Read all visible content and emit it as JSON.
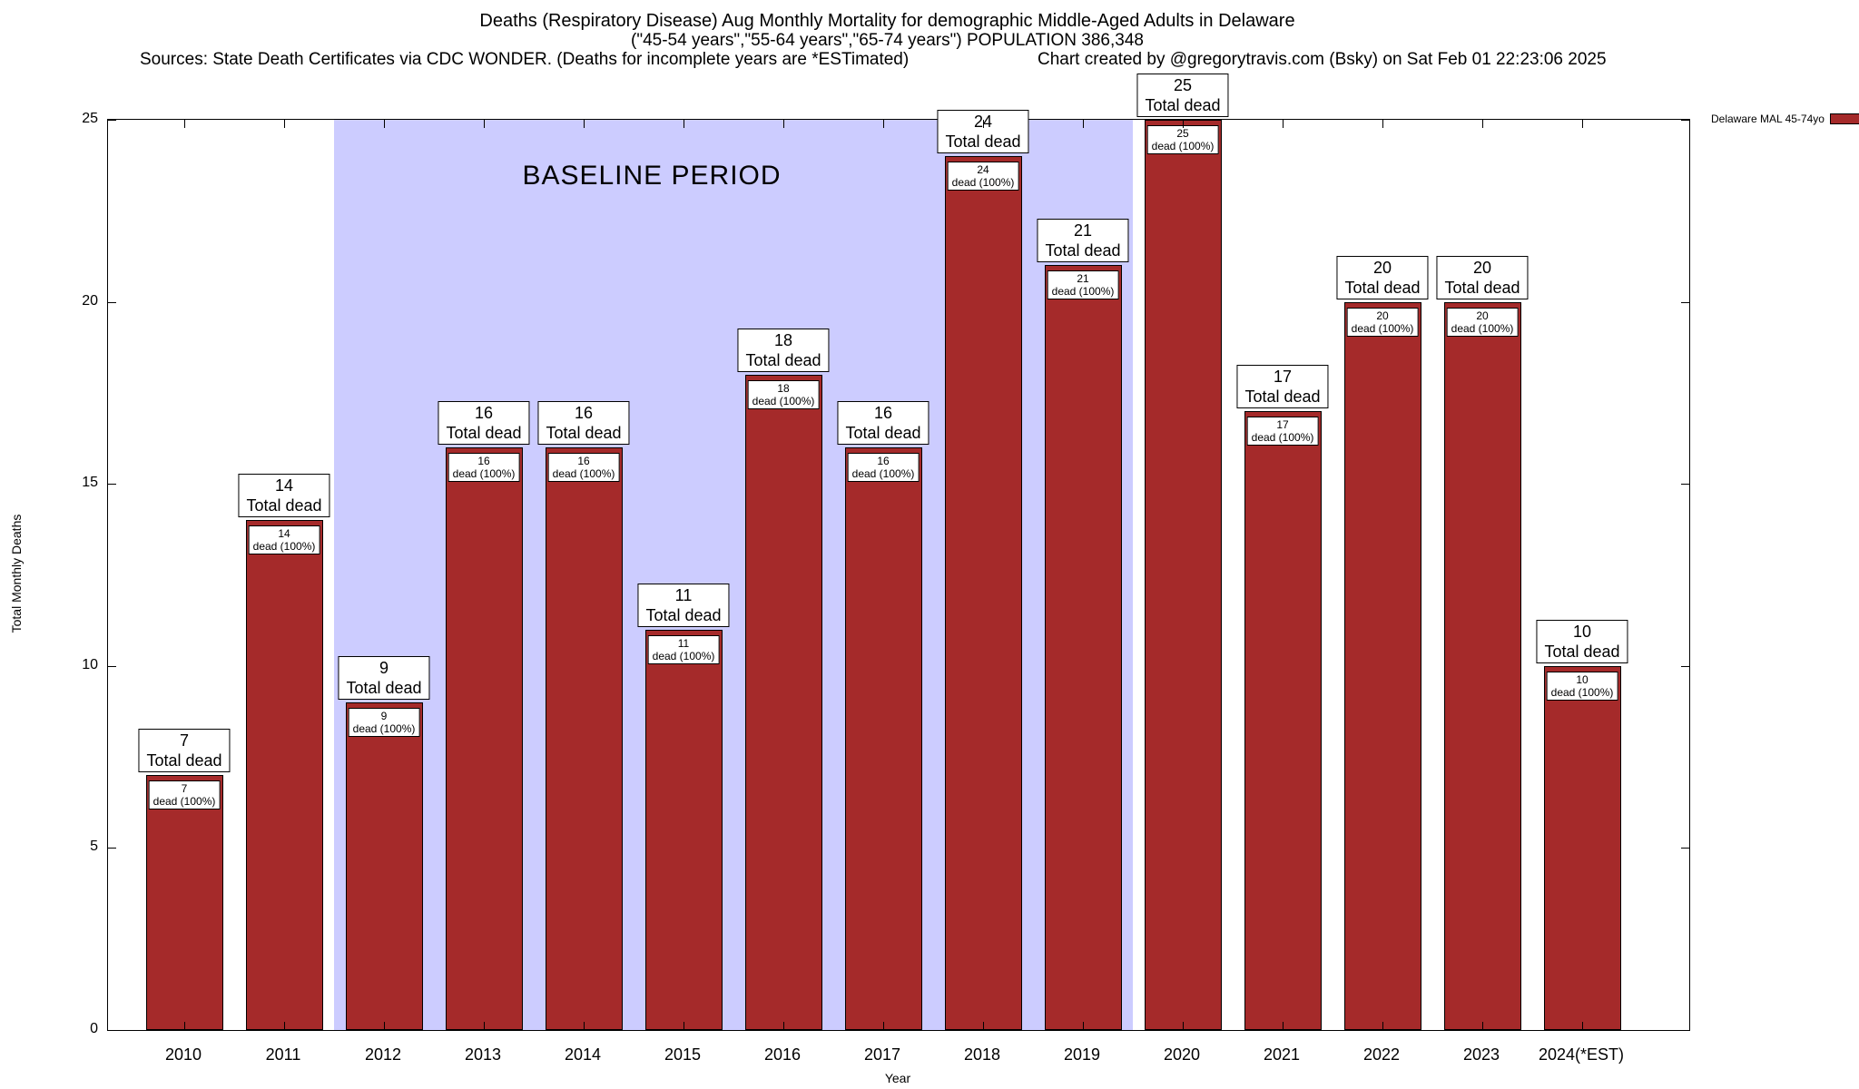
{
  "header": {
    "title_line1": "Deaths (Respiratory Disease) Aug Monthly Mortality for demographic Middle-Aged Adults in Delaware",
    "title_line2": "(\"45-54 years\",\"55-64 years\",\"65-74 years\") POPULATION 386,348",
    "sources": "Sources: State Death Certificates via CDC WONDER. (Deaths for incomplete years are *ESTimated)",
    "credit": "Chart created by @gregorytravis.com (Bsky) on Sat Feb 01 22:23:06 2025"
  },
  "legend": {
    "label": "Delaware MAL 45-74yo",
    "swatch_color": "#A52A2A"
  },
  "axes": {
    "ylabel": "Total Monthly Deaths",
    "xlabel": "Year"
  },
  "chart_data": {
    "type": "bar",
    "title": "Deaths (Respiratory Disease) Aug Monthly Mortality for demographic Middle-Aged Adults in Delaware",
    "subtitle": "(\"45-54 years\",\"55-64 years\",\"65-74 years\") POPULATION 386,348",
    "categories": [
      "2010",
      "2011",
      "2012",
      "2013",
      "2014",
      "2015",
      "2016",
      "2017",
      "2018",
      "2019",
      "2020",
      "2021",
      "2022",
      "2023",
      "2024(*EST)"
    ],
    "values": [
      7,
      14,
      9,
      16,
      16,
      11,
      18,
      16,
      24,
      21,
      25,
      17,
      20,
      20,
      10
    ],
    "series_name": "Delaware MAL 45-74yo",
    "bar_color": "#A52A2A",
    "ylim": [
      0,
      25
    ],
    "yticks": [
      0,
      5,
      10,
      15,
      20,
      25
    ],
    "xlabel": "Year",
    "ylabel": "Total Monthly Deaths",
    "grid": false,
    "legend_position": "top-right",
    "annotations": {
      "above_suffix": "Total dead",
      "inside_suffix": "dead (100%)"
    },
    "baseline_region": {
      "label": "BASELINE PERIOD",
      "from": "2012",
      "to": "2019",
      "color": "#CCCCFF"
    }
  }
}
